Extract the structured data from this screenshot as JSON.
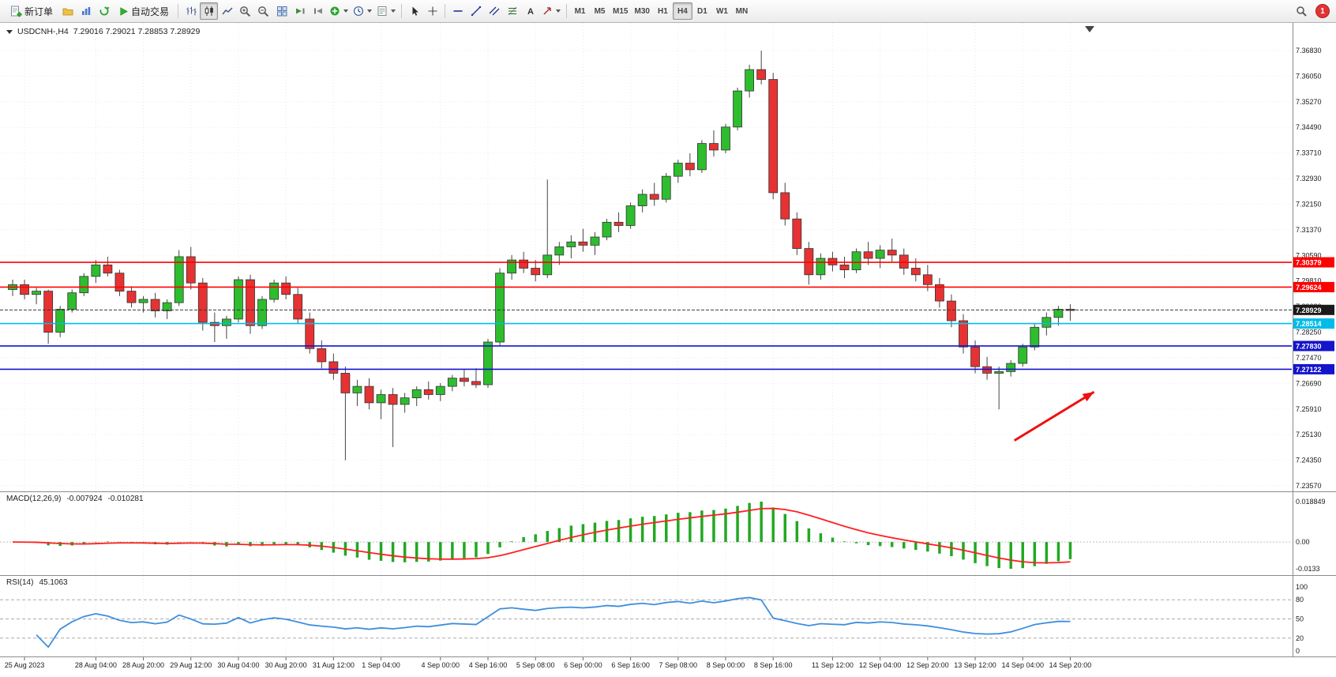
{
  "toolbar": {
    "new_order": "新订单",
    "auto_trading": "自动交易",
    "timeframes": [
      "M1",
      "M5",
      "M15",
      "M30",
      "H1",
      "H4",
      "D1",
      "W1",
      "MN"
    ],
    "active_timeframe": "H4",
    "notification_count": "1"
  },
  "chart": {
    "symbol_period": "USDCNH-,H4",
    "ohlc_text": "7.29016 7.29021 7.28853 7.28929"
  },
  "chart_data": {
    "type": "candlestick",
    "symbol": "USDCNH-",
    "timeframe": "H4",
    "colors": {
      "up": "#2EBD2E",
      "down": "#E63232",
      "outline": "#333333",
      "wick": "#444444",
      "macd_hist": "#22A822",
      "macd_signal": "#FF2020",
      "rsi_line": "#3E8EDE"
    },
    "y_axis": {
      "top": 7.3683,
      "step": 0.0078,
      "labels": [
        "7.36830",
        "7.36050",
        "7.35270",
        "7.34490",
        "7.33710",
        "7.32930",
        "7.32150",
        "7.31370",
        "7.30590",
        "7.29810",
        "7.29030",
        "7.28250",
        "7.27470",
        "7.26690",
        "7.25910",
        "7.25130",
        "7.24350",
        "7.23570"
      ]
    },
    "x_axis": {
      "labels": [
        "25 Aug 2023",
        "28 Aug 04:00",
        "28 Aug 20:00",
        "29 Aug 12:00",
        "30 Aug 04:00",
        "30 Aug 20:00",
        "31 Aug 12:00",
        "1 Sep 04:00",
        "4 Sep 00:00",
        "4 Sep 16:00",
        "5 Sep 08:00",
        "6 Sep 00:00",
        "6 Sep 16:00",
        "7 Sep 08:00",
        "8 Sep 00:00",
        "8 Sep 16:00",
        "11 Sep 12:00",
        "12 Sep 04:00",
        "12 Sep 20:00",
        "13 Sep 12:00",
        "14 Sep 04:00",
        "14 Sep 20:00"
      ],
      "candle_indices": [
        1,
        7,
        11,
        15,
        19,
        23,
        27,
        31,
        36,
        40,
        44,
        48,
        52,
        56,
        60,
        64,
        69,
        73,
        77,
        81,
        85,
        89
      ]
    },
    "candles": [
      [
        7.2955,
        7.2985,
        7.2935,
        7.297
      ],
      [
        7.297,
        7.2985,
        7.2925,
        7.294
      ],
      [
        7.294,
        7.296,
        7.291,
        7.295
      ],
      [
        7.295,
        7.2955,
        7.279,
        7.2825
      ],
      [
        7.2825,
        7.2905,
        7.281,
        7.2895
      ],
      [
        7.2895,
        7.2955,
        7.2885,
        7.2945
      ],
      [
        7.2945,
        7.3005,
        7.2935,
        7.2995
      ],
      [
        7.2995,
        7.3045,
        7.2975,
        7.303
      ],
      [
        7.303,
        7.3055,
        7.2995,
        7.3005
      ],
      [
        7.3005,
        7.3015,
        7.2935,
        7.295
      ],
      [
        7.295,
        7.2965,
        7.29,
        7.2915
      ],
      [
        7.2915,
        7.2935,
        7.2885,
        7.2925
      ],
      [
        7.2925,
        7.2945,
        7.287,
        7.289
      ],
      [
        7.289,
        7.2925,
        7.2865,
        7.2915
      ],
      [
        7.2915,
        7.3075,
        7.2905,
        7.3055
      ],
      [
        7.3055,
        7.3085,
        7.2955,
        7.2975
      ],
      [
        7.2975,
        7.299,
        7.283,
        7.2855
      ],
      [
        7.2855,
        7.2885,
        7.2795,
        7.2845
      ],
      [
        7.2845,
        7.2875,
        7.2805,
        7.2865
      ],
      [
        7.2865,
        7.2995,
        7.2855,
        7.2985
      ],
      [
        7.2985,
        7.3,
        7.282,
        7.2845
      ],
      [
        7.2845,
        7.2935,
        7.2835,
        7.2925
      ],
      [
        7.2925,
        7.2985,
        7.2915,
        7.2975
      ],
      [
        7.2975,
        7.2995,
        7.2925,
        7.294
      ],
      [
        7.294,
        7.296,
        7.285,
        7.2865
      ],
      [
        7.2865,
        7.2885,
        7.276,
        7.2775
      ],
      [
        7.2775,
        7.28,
        7.2715,
        7.2735
      ],
      [
        7.2735,
        7.276,
        7.268,
        7.27
      ],
      [
        7.27,
        7.272,
        7.2435,
        7.264
      ],
      [
        7.264,
        7.268,
        7.26,
        7.266
      ],
      [
        7.266,
        7.2685,
        7.259,
        7.261
      ],
      [
        7.261,
        7.265,
        7.256,
        7.2635
      ],
      [
        7.2635,
        7.2655,
        7.2475,
        7.2605
      ],
      [
        7.2605,
        7.264,
        7.258,
        7.2625
      ],
      [
        7.2625,
        7.266,
        7.26,
        7.265
      ],
      [
        7.265,
        7.2675,
        7.262,
        7.2635
      ],
      [
        7.2635,
        7.267,
        7.2615,
        7.266
      ],
      [
        7.266,
        7.2695,
        7.2645,
        7.2685
      ],
      [
        7.2685,
        7.271,
        7.266,
        7.2675
      ],
      [
        7.2675,
        7.2715,
        7.2655,
        7.2665
      ],
      [
        7.2665,
        7.2805,
        7.2655,
        7.2795
      ],
      [
        7.2795,
        7.302,
        7.2785,
        7.3005
      ],
      [
        7.3005,
        7.306,
        7.2985,
        7.3045
      ],
      [
        7.3045,
        7.307,
        7.3005,
        7.302
      ],
      [
        7.302,
        7.3045,
        7.298,
        7.3
      ],
      [
        7.3,
        7.329,
        7.299,
        7.306
      ],
      [
        7.306,
        7.31,
        7.303,
        7.3085
      ],
      [
        7.3085,
        7.312,
        7.305,
        7.31
      ],
      [
        7.31,
        7.314,
        7.307,
        7.309
      ],
      [
        7.309,
        7.313,
        7.306,
        7.3115
      ],
      [
        7.3115,
        7.317,
        7.3105,
        7.316
      ],
      [
        7.316,
        7.319,
        7.313,
        7.315
      ],
      [
        7.315,
        7.322,
        7.314,
        7.321
      ],
      [
        7.321,
        7.326,
        7.319,
        7.3245
      ],
      [
        7.3245,
        7.328,
        7.321,
        7.323
      ],
      [
        7.323,
        7.331,
        7.322,
        7.33
      ],
      [
        7.33,
        7.335,
        7.328,
        7.334
      ],
      [
        7.334,
        7.337,
        7.33,
        7.332
      ],
      [
        7.332,
        7.341,
        7.331,
        7.34
      ],
      [
        7.34,
        7.344,
        7.336,
        7.338
      ],
      [
        7.338,
        7.346,
        7.337,
        7.345
      ],
      [
        7.345,
        7.357,
        7.344,
        7.356
      ],
      [
        7.356,
        7.364,
        7.354,
        7.3625
      ],
      [
        7.3625,
        7.3683,
        7.358,
        7.3595
      ],
      [
        7.3595,
        7.3615,
        7.323,
        7.325
      ],
      [
        7.325,
        7.328,
        7.315,
        7.317
      ],
      [
        7.317,
        7.319,
        7.306,
        7.308
      ],
      [
        7.308,
        7.31,
        7.297,
        7.3
      ],
      [
        7.3,
        7.3065,
        7.2985,
        7.305
      ],
      [
        7.305,
        7.307,
        7.301,
        7.303
      ],
      [
        7.303,
        7.3055,
        7.299,
        7.3015
      ],
      [
        7.3015,
        7.308,
        7.3005,
        7.307
      ],
      [
        7.307,
        7.31,
        7.303,
        7.305
      ],
      [
        7.305,
        7.309,
        7.302,
        7.3075
      ],
      [
        7.3075,
        7.311,
        7.304,
        7.306
      ],
      [
        7.306,
        7.308,
        7.3,
        7.302
      ],
      [
        7.302,
        7.305,
        7.298,
        7.3
      ],
      [
        7.3,
        7.303,
        7.295,
        7.297
      ],
      [
        7.297,
        7.299,
        7.29,
        7.292
      ],
      [
        7.292,
        7.294,
        7.284,
        7.286
      ],
      [
        7.286,
        7.288,
        7.276,
        7.278
      ],
      [
        7.278,
        7.28,
        7.27,
        7.272
      ],
      [
        7.272,
        7.275,
        7.268,
        7.27
      ],
      [
        7.27,
        7.272,
        7.259,
        7.2705
      ],
      [
        7.2705,
        7.274,
        7.269,
        7.273
      ],
      [
        7.273,
        7.279,
        7.272,
        7.278
      ],
      [
        7.278,
        7.285,
        7.277,
        7.284
      ],
      [
        7.284,
        7.2885,
        7.2815,
        7.287
      ],
      [
        7.287,
        7.2905,
        7.2845,
        7.2895
      ],
      [
        7.2895,
        7.291,
        7.286,
        7.2893
      ]
    ],
    "hlines": [
      {
        "price": 7.30379,
        "label": "7.30379",
        "color": "#FF0000",
        "width": 1.6
      },
      {
        "price": 7.29624,
        "label": "7.29624",
        "color": "#FF0000",
        "width": 1.6
      },
      {
        "price": 7.28929,
        "label": "7.28929",
        "color": "#3A3A3A",
        "width": 1,
        "style": "dash",
        "badge": "#1A1A1A"
      },
      {
        "price": 7.28514,
        "label": "7.28514",
        "color": "#00BCE8",
        "width": 1.6
      },
      {
        "price": 7.2783,
        "label": "7.27830",
        "color": "#1414CC",
        "width": 1.6
      },
      {
        "price": 7.27122,
        "label": "7.27122",
        "color": "#1414CC",
        "width": 1.6
      }
    ],
    "arrow": {
      "from_index": 84.3,
      "from_price": 7.2495,
      "to_index": 91.0,
      "to_price": 7.2643,
      "color": "#EE1111"
    },
    "macd": {
      "name": "MACD(12,26,9)",
      "main_value": "-0.007924",
      "signal_value": "-0.010281",
      "fast": 12,
      "slow": 26,
      "signal": 9,
      "axis_labels": {
        "top": "0.018849",
        "zero": "0.00",
        "bottom": "-0.0133"
      }
    },
    "rsi": {
      "name": "RSI(14)",
      "value": "45.1063",
      "period": 14,
      "levels": [
        80,
        50,
        20
      ],
      "axis_values": [
        100,
        80,
        50,
        20,
        0
      ],
      "axis_labels": [
        "100",
        "80",
        "50",
        "20",
        "0"
      ]
    }
  }
}
